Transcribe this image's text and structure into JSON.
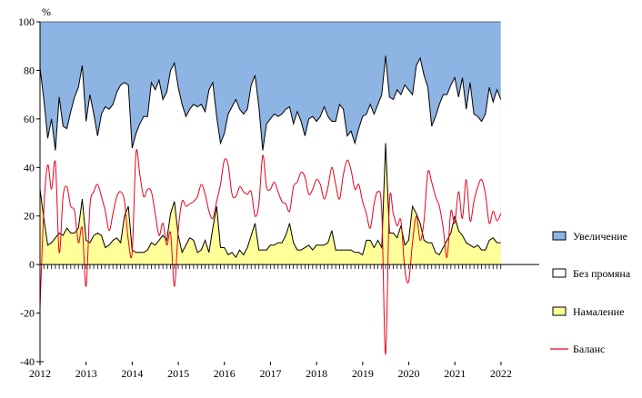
{
  "chart_data": {
    "type": "area",
    "ylabel": "%",
    "ylim": [
      -40,
      100
    ],
    "yticks": [
      -40,
      -20,
      0,
      20,
      40,
      60,
      80,
      100
    ],
    "xlim": [
      2012,
      2022.83
    ],
    "xticks": [
      "2012",
      "2013",
      "2014",
      "2015",
      "2016",
      "2017",
      "2018",
      "2019",
      "2020",
      "2021",
      "2022"
    ],
    "legend_position": "right",
    "colors": {
      "increase": "#8DB4E2",
      "no_change": "#FFFFFF",
      "decrease": "#FFFF99",
      "balance": "#E8001C",
      "outline": "#000000"
    },
    "x_start": 2012.0,
    "x_step": 0.0833,
    "series": [
      {
        "name": "Намаление",
        "values": [
          31,
          19,
          8,
          9,
          11,
          13,
          12,
          15,
          13,
          13,
          15,
          27,
          10,
          9,
          12,
          13,
          12,
          7,
          8,
          10,
          11,
          9,
          20,
          24,
          6,
          5,
          5,
          5,
          6,
          9,
          8,
          10,
          12,
          10,
          21,
          26,
          12,
          5,
          8,
          11,
          10,
          5,
          6,
          10,
          5,
          15,
          24,
          7,
          7,
          4,
          5,
          3,
          6,
          4,
          7,
          12,
          17,
          6,
          6,
          6,
          8,
          8,
          9,
          9,
          12,
          17,
          9,
          6,
          6,
          7,
          8,
          6,
          8,
          8,
          8,
          9,
          14,
          6,
          6,
          6,
          6,
          6,
          5,
          5,
          4,
          10,
          10,
          7,
          10,
          7,
          50,
          13,
          13,
          11,
          16,
          8,
          10,
          24,
          21,
          17,
          10,
          9,
          9,
          5,
          4,
          7,
          10,
          13,
          20,
          14,
          12,
          9,
          8,
          7,
          8,
          6,
          6,
          10,
          11,
          9,
          9
        ]
      },
      {
        "name": "Без промяна",
        "cumulative_top": [
          81,
          68,
          52,
          60,
          47,
          69,
          57,
          56,
          63,
          69,
          73,
          82,
          59,
          70,
          62,
          53,
          62,
          65,
          64,
          66,
          71,
          74,
          75,
          74,
          48,
          54,
          58,
          61,
          61,
          75,
          72,
          76,
          68,
          71,
          80,
          83,
          73,
          66,
          61,
          64,
          66,
          65,
          66,
          63,
          72,
          75,
          61,
          50,
          54,
          62,
          65,
          68,
          64,
          62,
          64,
          74,
          78,
          65,
          47,
          58,
          60,
          62,
          61,
          62,
          64,
          65,
          58,
          63,
          59,
          53,
          60,
          61,
          59,
          61,
          65,
          61,
          59,
          59,
          66,
          64,
          53,
          55,
          50,
          56,
          61,
          62,
          66,
          62,
          66,
          70,
          86,
          69,
          68,
          72,
          70,
          74,
          72,
          70,
          82,
          85,
          78,
          73,
          57,
          61,
          66,
          70,
          70,
          74,
          77,
          69,
          77,
          64,
          75,
          62,
          61,
          59,
          62,
          73,
          67,
          72,
          68
        ]
      },
      {
        "name": "Увеличение",
        "top": 100
      },
      {
        "name": "Баланс",
        "values": [
          -18,
          23,
          41,
          31,
          42,
          5,
          28,
          32,
          24,
          22,
          9,
          15,
          -9,
          24,
          30,
          33,
          28,
          22,
          14,
          21,
          28,
          30,
          26,
          10,
          5,
          46,
          37,
          28,
          31,
          30,
          21,
          12,
          17,
          8,
          13,
          -9,
          14,
          26,
          24,
          25,
          26,
          28,
          33,
          29,
          22,
          19,
          26,
          33,
          43,
          41,
          29,
          28,
          32,
          30,
          29,
          30,
          20,
          25,
          45,
          32,
          31,
          34,
          30,
          26,
          25,
          22,
          32,
          34,
          38,
          36,
          29,
          31,
          35,
          33,
          27,
          32,
          40,
          33,
          27,
          37,
          43,
          39,
          31,
          33,
          26,
          21,
          15,
          25,
          30,
          22,
          -37,
          26,
          21,
          16,
          18,
          -2,
          -7,
          9,
          20,
          10,
          18,
          38,
          34,
          28,
          24,
          15,
          3,
          22,
          17,
          30,
          19,
          35,
          18,
          26,
          32,
          35,
          29,
          17,
          22,
          18,
          21
        ]
      }
    ]
  }
}
